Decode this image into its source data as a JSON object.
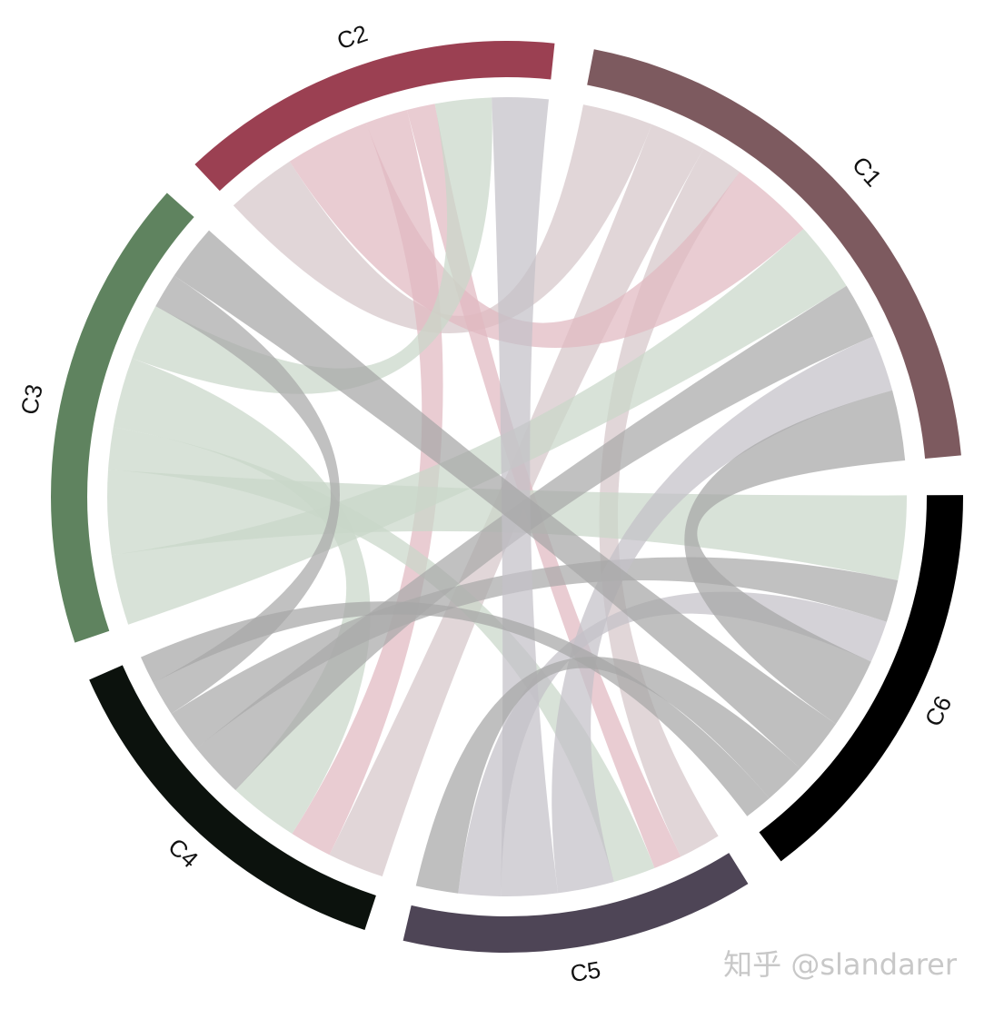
{
  "chart_data": {
    "type": "chord",
    "sectors": [
      {
        "name": "C1",
        "color": "#7d5a5f",
        "chord_color": "#d6c6c9"
      },
      {
        "name": "C6",
        "color": "#000000",
        "chord_color": "#a6a6a6"
      },
      {
        "name": "C5",
        "color": "#4e4556",
        "chord_color": "#c3c1c7"
      },
      {
        "name": "C4",
        "color": "#0c120d",
        "chord_color": "#a9a9a9"
      },
      {
        "name": "C3",
        "color": "#5f835f",
        "chord_color": "#c9d7c9"
      },
      {
        "name": "C2",
        "color": "#9b4052",
        "chord_color": "#e0b9c1"
      }
    ],
    "order": "clockwise",
    "links": [
      {
        "source": "C1",
        "target": "C2",
        "value": 10
      },
      {
        "source": "C1",
        "target": "C4",
        "value": 8
      },
      {
        "source": "C1",
        "target": "C5",
        "value": 6
      },
      {
        "source": "C2",
        "target": "C1",
        "value": 12
      },
      {
        "source": "C2",
        "target": "C4",
        "value": 6
      },
      {
        "source": "C2",
        "target": "C5",
        "value": 4
      },
      {
        "source": "C3",
        "target": "C1",
        "value": 10
      },
      {
        "source": "C3",
        "target": "C6",
        "value": 12
      },
      {
        "source": "C3",
        "target": "C5",
        "value": 6
      },
      {
        "source": "C3",
        "target": "C4",
        "value": 10
      },
      {
        "source": "C3",
        "target": "C2",
        "value": 8
      },
      {
        "source": "C4",
        "target": "C1",
        "value": 8
      },
      {
        "source": "C4",
        "target": "C6",
        "value": 6
      },
      {
        "source": "C4",
        "target": "C3",
        "value": 5
      },
      {
        "source": "C5",
        "target": "C1",
        "value": 8
      },
      {
        "source": "C5",
        "target": "C2",
        "value": 8
      },
      {
        "source": "C5",
        "target": "C6",
        "value": 6
      },
      {
        "source": "C6",
        "target": "C1",
        "value": 10
      },
      {
        "source": "C6",
        "target": "C3",
        "value": 8
      },
      {
        "source": "C6",
        "target": "C5",
        "value": 6
      },
      {
        "source": "C6",
        "target": "C4",
        "value": 4
      }
    ]
  },
  "watermark": "知乎 @slandarer"
}
